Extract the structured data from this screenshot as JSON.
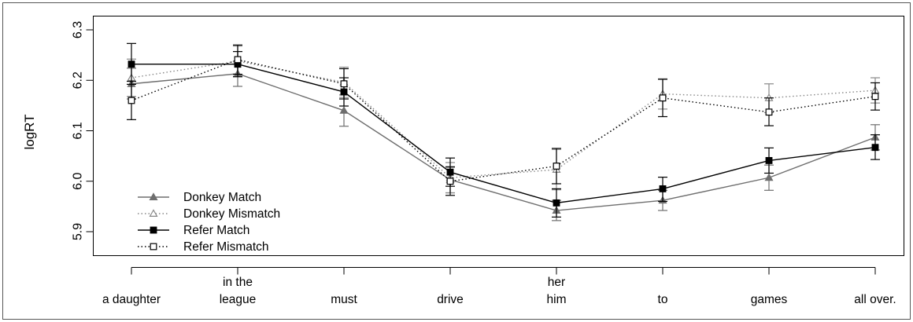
{
  "chart_data": {
    "type": "line",
    "title": "",
    "xlabel": "",
    "ylabel": "logRT",
    "ylim": [
      5.9,
      6.3
    ],
    "yticks": [
      "5.9",
      "6.0",
      "6.1",
      "6.2",
      "6.3"
    ],
    "grid": false,
    "legend_position": "bottom-left",
    "categories": [
      [
        "a daughter"
      ],
      [
        "in the",
        "league"
      ],
      [
        "must"
      ],
      [
        "drive"
      ],
      [
        "her",
        "him"
      ],
      [
        "to"
      ],
      [
        "games"
      ],
      [
        "all over."
      ]
    ],
    "series": [
      {
        "name": "Donkey Match",
        "color": "#6e6e6e",
        "line": "solid",
        "marker": "filled-triangle",
        "values": [
          6.193,
          6.213,
          6.14,
          6.003,
          5.942,
          5.962,
          6.007,
          6.087
        ],
        "ci": [
          [
            6.163,
            6.224
          ],
          [
            6.188,
            6.238
          ],
          [
            6.109,
            6.171
          ],
          [
            5.977,
            6.029
          ],
          [
            5.922,
            5.962
          ],
          [
            5.942,
            5.982
          ],
          [
            5.982,
            6.032
          ],
          [
            6.062,
            6.112
          ]
        ]
      },
      {
        "name": "Donkey Mismatch",
        "color": "#888888",
        "line": "dotted",
        "marker": "open-triangle",
        "values": [
          6.205,
          6.238,
          6.196,
          6.007,
          6.023,
          6.173,
          6.165,
          6.18
        ],
        "ci": [
          [
            6.168,
            6.242
          ],
          [
            6.208,
            6.268
          ],
          [
            6.166,
            6.226
          ],
          [
            5.977,
            6.037
          ],
          [
            5.983,
            6.063
          ],
          [
            6.143,
            6.203
          ],
          [
            6.136,
            6.193
          ],
          [
            6.155,
            6.205
          ]
        ]
      },
      {
        "name": "Refer Match",
        "color": "#000000",
        "line": "solid",
        "marker": "filled-square",
        "values": [
          6.232,
          6.232,
          6.177,
          6.018,
          5.957,
          5.985,
          6.041,
          6.067
        ],
        "ci": [
          [
            6.192,
            6.273
          ],
          [
            6.207,
            6.257
          ],
          [
            6.149,
            6.205
          ],
          [
            5.99,
            6.046
          ],
          [
            5.929,
            5.985
          ],
          [
            5.96,
            6.008
          ],
          [
            6.016,
            6.066
          ],
          [
            6.043,
            6.092
          ]
        ]
      },
      {
        "name": "Refer Mismatch",
        "color": "#000000",
        "line": "dotted",
        "marker": "open-square",
        "values": [
          6.16,
          6.241,
          6.193,
          6.0,
          6.03,
          6.165,
          6.137,
          6.168
        ],
        "ci": [
          [
            6.122,
            6.198
          ],
          [
            6.212,
            6.27
          ],
          [
            6.163,
            6.223
          ],
          [
            5.972,
            6.028
          ],
          [
            5.995,
            6.065
          ],
          [
            6.128,
            6.202
          ],
          [
            6.11,
            6.165
          ],
          [
            6.141,
            6.195
          ]
        ]
      }
    ]
  }
}
